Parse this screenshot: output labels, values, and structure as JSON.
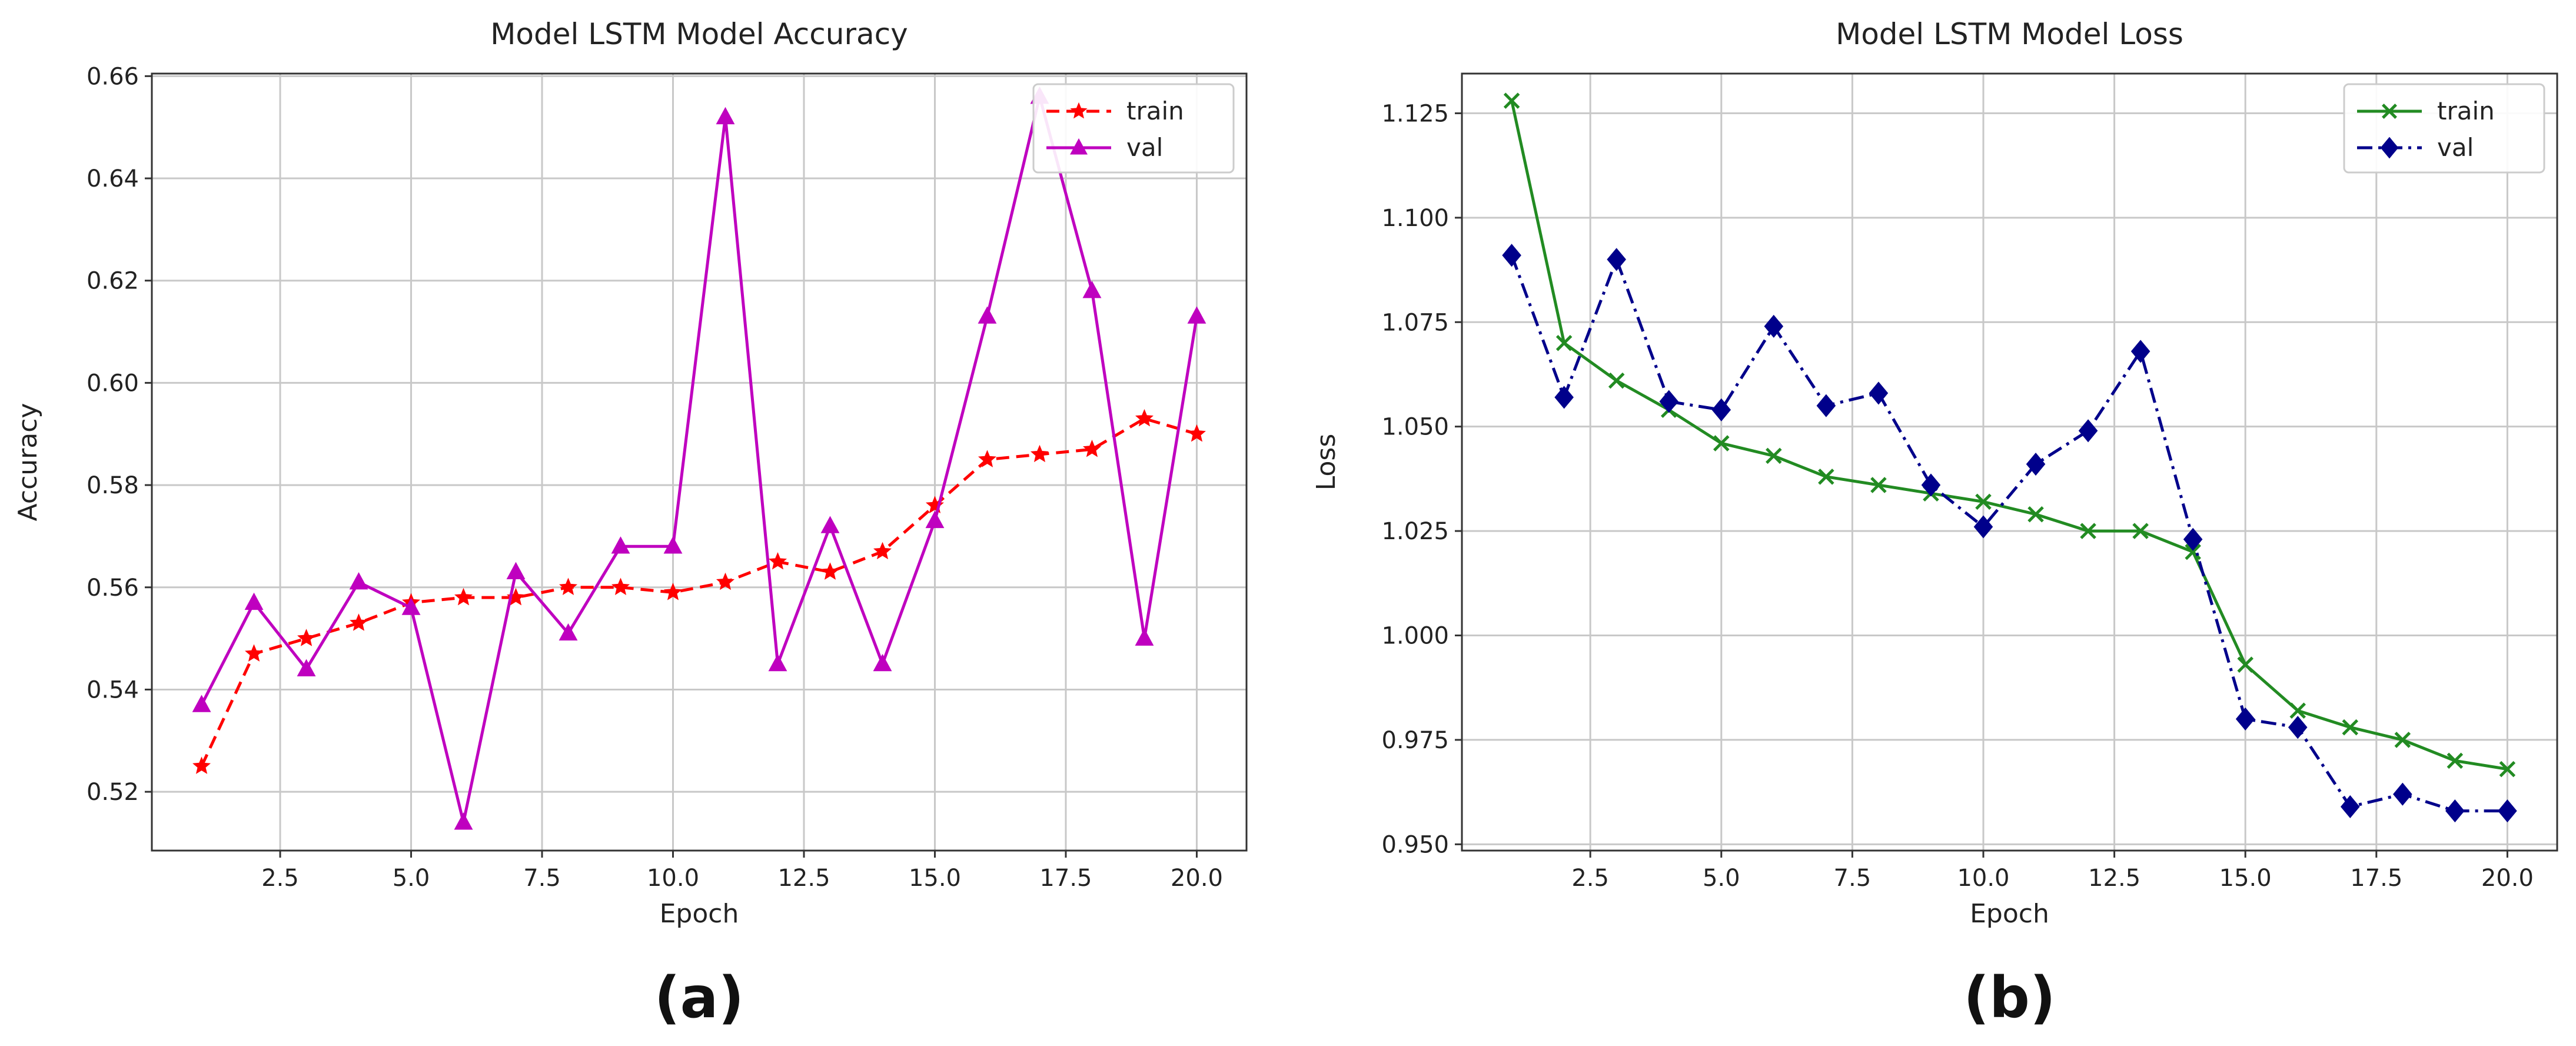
{
  "chart_data": [
    {
      "type": "line",
      "panel_label": "(a)",
      "title": "Model LSTM Model Accuracy",
      "xlabel": "Epoch",
      "ylabel": "Accuracy",
      "xlim": [
        0.05,
        20.95
      ],
      "ylim": [
        0.5085,
        0.6605
      ],
      "xticks": [
        2.5,
        5.0,
        7.5,
        10.0,
        12.5,
        15.0,
        17.5,
        20.0
      ],
      "xtick_labels": [
        "2.5",
        "5.0",
        "7.5",
        "10.0",
        "12.5",
        "15.0",
        "17.5",
        "20.0"
      ],
      "yticks": [
        0.52,
        0.54,
        0.56,
        0.58,
        0.6,
        0.62,
        0.64,
        0.66
      ],
      "ytick_labels": [
        "0.52",
        "0.54",
        "0.56",
        "0.58",
        "0.60",
        "0.62",
        "0.64",
        "0.66"
      ],
      "grid": true,
      "legend_position": "top-right",
      "x": [
        1,
        2,
        3,
        4,
        5,
        6,
        7,
        8,
        9,
        10,
        11,
        12,
        13,
        14,
        15,
        16,
        17,
        18,
        19,
        20
      ],
      "series": [
        {
          "name": "train",
          "color": "#ff0000",
          "linestyle": "dashed",
          "marker": "star",
          "values": [
            0.525,
            0.547,
            0.55,
            0.553,
            0.557,
            0.558,
            0.558,
            0.56,
            0.56,
            0.559,
            0.561,
            0.565,
            0.563,
            0.567,
            0.576,
            0.585,
            0.586,
            0.587,
            0.593,
            0.59
          ]
        },
        {
          "name": "val",
          "color": "#bf00bf",
          "linestyle": "solid",
          "marker": "triangle",
          "values": [
            0.537,
            0.557,
            0.544,
            0.561,
            0.556,
            0.514,
            0.563,
            0.551,
            0.568,
            0.568,
            0.652,
            0.545,
            0.572,
            0.545,
            0.573,
            0.613,
            0.656,
            0.618,
            0.55,
            0.613
          ]
        }
      ]
    },
    {
      "type": "line",
      "panel_label": "(b)",
      "title": "Model LSTM Model Loss",
      "xlabel": "Epoch",
      "ylabel": "Loss",
      "xlim": [
        0.05,
        20.95
      ],
      "ylim": [
        0.9485,
        1.1345
      ],
      "xticks": [
        2.5,
        5.0,
        7.5,
        10.0,
        12.5,
        15.0,
        17.5,
        20.0
      ],
      "xtick_labels": [
        "2.5",
        "5.0",
        "7.5",
        "10.0",
        "12.5",
        "15.0",
        "17.5",
        "20.0"
      ],
      "yticks": [
        0.95,
        0.975,
        1.0,
        1.025,
        1.05,
        1.075,
        1.1,
        1.125
      ],
      "ytick_labels": [
        "0.950",
        "0.975",
        "1.000",
        "1.025",
        "1.050",
        "1.075",
        "1.100",
        "1.125"
      ],
      "grid": true,
      "legend_position": "top-right",
      "x": [
        1,
        2,
        3,
        4,
        5,
        6,
        7,
        8,
        9,
        10,
        11,
        12,
        13,
        14,
        15,
        16,
        17,
        18,
        19,
        20
      ],
      "series": [
        {
          "name": "train",
          "color": "#228b22",
          "linestyle": "solid",
          "marker": "x",
          "values": [
            1.128,
            1.07,
            1.061,
            1.054,
            1.046,
            1.043,
            1.038,
            1.036,
            1.034,
            1.032,
            1.029,
            1.025,
            1.025,
            1.02,
            0.993,
            0.982,
            0.978,
            0.975,
            0.97,
            0.968
          ]
        },
        {
          "name": "val",
          "color": "#00008b",
          "linestyle": "dashdot",
          "marker": "diamond",
          "values": [
            1.091,
            1.057,
            1.09,
            1.056,
            1.054,
            1.074,
            1.055,
            1.058,
            1.036,
            1.026,
            1.041,
            1.049,
            1.068,
            1.023,
            0.98,
            0.978,
            0.959,
            0.962,
            0.958,
            0.958
          ]
        }
      ]
    }
  ]
}
